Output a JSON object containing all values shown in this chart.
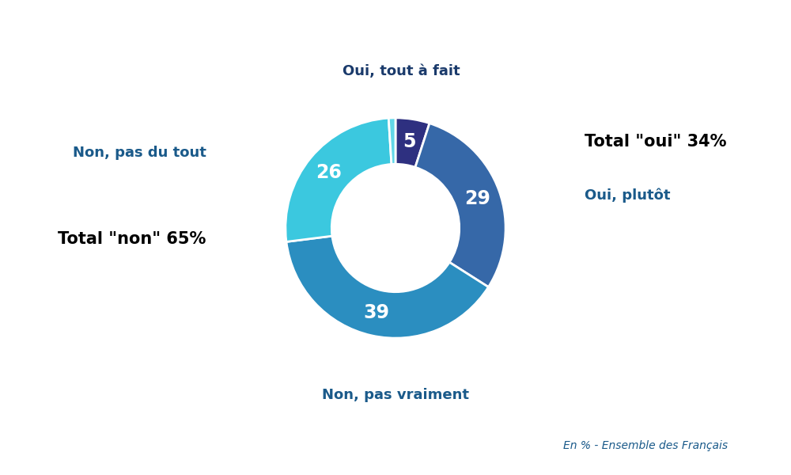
{
  "segments": [
    {
      "label": "Oui, tout à fait",
      "value": 5,
      "color": "#2E3080",
      "text_color": "#ffffff"
    },
    {
      "label": "Oui, plutôt",
      "value": 29,
      "color": "#3668A8",
      "text_color": "#ffffff"
    },
    {
      "label": "Non, pas vraiment",
      "value": 39,
      "color": "#2B8EC0",
      "text_color": "#ffffff"
    },
    {
      "label": "Non, pas du tout",
      "value": 26,
      "color": "#3BC8DF",
      "text_color": "#ffffff"
    }
  ],
  "thin_sliver": {
    "value": 1,
    "color": "#62D8E8"
  },
  "total_oui_label": "Total \"oui\" 34%",
  "total_non_label": "Total \"non\" 65%",
  "footnote": "En % - Ensemble des Français",
  "bg_color": "#ffffff",
  "color_oui_label": "#1A3A6B",
  "color_non_label": "#1A5A8A",
  "color_total_bold": "#000000",
  "donut_width": 0.42,
  "start_angle": 90,
  "label_fontsize": 13,
  "value_fontsize": 17,
  "total_fontsize": 15,
  "footnote_fontsize": 10
}
